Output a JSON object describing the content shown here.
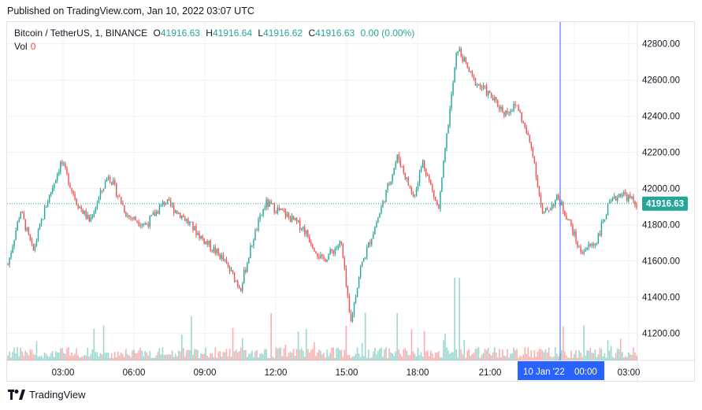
{
  "header": {
    "published": "Published on TradingView.com, Jan 10, 2022 03:07 UTC"
  },
  "legend": {
    "symbol": "Bitcoin / TetherUS, 1, BINANCE",
    "open_label": "O",
    "open": "41916.63",
    "high_label": "H",
    "high": "41916.64",
    "low_label": "L",
    "low": "41916.62",
    "close_label": "C",
    "close": "41916.63",
    "change": "0.00 (0.00%)",
    "vol_label": "Vol",
    "vol_value": "0"
  },
  "footer": {
    "brand": "TradingView"
  },
  "colors": {
    "up": "#26a69a",
    "down": "#ef5350",
    "crosshair": "#2962ff",
    "axis_text": "#131722",
    "grid": "#f0f3fa"
  },
  "chart_data": {
    "type": "candlestick",
    "symbol": "Bitcoin / TetherUS",
    "interval": "1",
    "exchange": "BINANCE",
    "y_axis": {
      "ylim": [
        41050,
        42920
      ],
      "ticks": [
        41200,
        41400,
        41600,
        41800,
        42000,
        42200,
        42400,
        42600,
        42800
      ]
    },
    "x_axis": {
      "ticks": [
        "03:00",
        "06:00",
        "09:00",
        "12:00",
        "15:00",
        "18:00",
        "21:00",
        "00:00",
        "03:00"
      ]
    },
    "last_price": "41916.63",
    "crosshair_label_date": "10 Jan '22",
    "crosshair_label_time": "00:00",
    "price_path": [
      [
        0.0,
        41580
      ],
      [
        0.02,
        41880
      ],
      [
        0.04,
        41650
      ],
      [
        0.06,
        41900
      ],
      [
        0.085,
        42150
      ],
      [
        0.11,
        41920
      ],
      [
        0.13,
        41820
      ],
      [
        0.16,
        42080
      ],
      [
        0.19,
        41850
      ],
      [
        0.22,
        41800
      ],
      [
        0.25,
        41930
      ],
      [
        0.28,
        41840
      ],
      [
        0.31,
        41720
      ],
      [
        0.34,
        41620
      ],
      [
        0.37,
        41450
      ],
      [
        0.39,
        41720
      ],
      [
        0.41,
        41920
      ],
      [
        0.44,
        41860
      ],
      [
        0.47,
        41780
      ],
      [
        0.5,
        41600
      ],
      [
        0.53,
        41700
      ],
      [
        0.545,
        41250
      ],
      [
        0.56,
        41550
      ],
      [
        0.59,
        41850
      ],
      [
        0.62,
        42180
      ],
      [
        0.645,
        41950
      ],
      [
        0.66,
        42150
      ],
      [
        0.685,
        41880
      ],
      [
        0.7,
        42350
      ],
      [
        0.715,
        42780
      ],
      [
        0.74,
        42600
      ],
      [
        0.76,
        42540
      ],
      [
        0.79,
        42420
      ],
      [
        0.81,
        42460
      ],
      [
        0.835,
        42200
      ],
      [
        0.85,
        41850
      ],
      [
        0.875,
        41950
      ],
      [
        0.895,
        41800
      ],
      [
        0.91,
        41650
      ],
      [
        0.935,
        41700
      ],
      [
        0.955,
        41900
      ],
      [
        0.975,
        41980
      ],
      [
        1.0,
        41916
      ]
    ]
  }
}
